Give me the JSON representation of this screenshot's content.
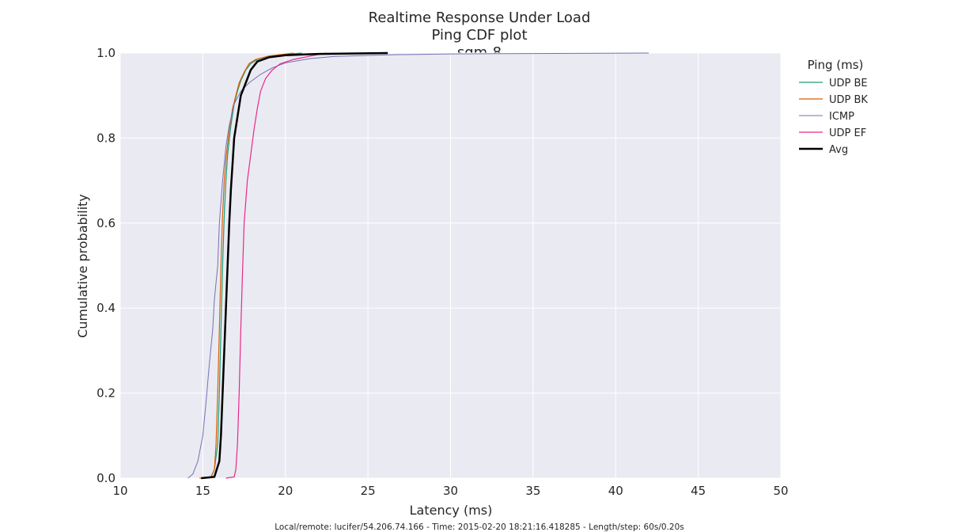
{
  "chart_data": {
    "type": "line",
    "title": [
      "Realtime Response Under Load",
      "Ping CDF plot",
      "sqm-8"
    ],
    "xlabel": "Latency (ms)",
    "ylabel": "Cumulative probability",
    "xlim": [
      10,
      50
    ],
    "ylim": [
      0.0,
      1.0
    ],
    "xticks": [
      10,
      15,
      20,
      25,
      30,
      35,
      40,
      45,
      50
    ],
    "yticks": [
      "0.0",
      "0.2",
      "0.4",
      "0.6",
      "0.8",
      "1.0"
    ],
    "grid": true,
    "legend_title": "Ping (ms)",
    "legend_position": "outside-right",
    "footer": "Local/remote: lucifer/54.206.74.166 - Time: 2015-02-20 18:21:16.418285 - Length/step: 60s/0.20s",
    "series": [
      {
        "name": "UDP BE",
        "color": "#1b9e77",
        "width": 1.2,
        "points": [
          [
            15.0,
            0.0
          ],
          [
            15.5,
            0.003
          ],
          [
            15.7,
            0.02
          ],
          [
            15.9,
            0.08
          ],
          [
            16.0,
            0.2
          ],
          [
            16.1,
            0.35
          ],
          [
            16.2,
            0.5
          ],
          [
            16.3,
            0.62
          ],
          [
            16.4,
            0.7
          ],
          [
            16.5,
            0.76
          ],
          [
            16.7,
            0.83
          ],
          [
            16.9,
            0.88
          ],
          [
            17.1,
            0.91
          ],
          [
            17.3,
            0.935
          ],
          [
            17.6,
            0.96
          ],
          [
            17.9,
            0.975
          ],
          [
            18.3,
            0.985
          ],
          [
            19.0,
            0.993
          ],
          [
            20.0,
            0.997
          ],
          [
            21.0,
            1.0
          ]
        ]
      },
      {
        "name": "UDP BK",
        "color": "#d95f02",
        "width": 1.2,
        "points": [
          [
            14.8,
            0.0
          ],
          [
            15.5,
            0.003
          ],
          [
            15.7,
            0.02
          ],
          [
            15.8,
            0.08
          ],
          [
            15.9,
            0.2
          ],
          [
            16.0,
            0.35
          ],
          [
            16.1,
            0.5
          ],
          [
            16.2,
            0.62
          ],
          [
            16.3,
            0.7
          ],
          [
            16.4,
            0.75
          ],
          [
            16.6,
            0.82
          ],
          [
            16.8,
            0.87
          ],
          [
            17.0,
            0.9
          ],
          [
            17.2,
            0.93
          ],
          [
            17.5,
            0.955
          ],
          [
            17.8,
            0.975
          ],
          [
            18.2,
            0.985
          ],
          [
            19.0,
            0.993
          ],
          [
            20.5,
            1.0
          ]
        ]
      },
      {
        "name": "ICMP",
        "color": "#7570b3",
        "width": 1.0,
        "points": [
          [
            14.1,
            0.0
          ],
          [
            14.4,
            0.01
          ],
          [
            14.7,
            0.04
          ],
          [
            15.0,
            0.1
          ],
          [
            15.2,
            0.18
          ],
          [
            15.4,
            0.27
          ],
          [
            15.6,
            0.35
          ],
          [
            15.7,
            0.42
          ],
          [
            15.9,
            0.5
          ],
          [
            16.0,
            0.6
          ],
          [
            16.2,
            0.7
          ],
          [
            16.4,
            0.78
          ],
          [
            16.6,
            0.83
          ],
          [
            16.9,
            0.88
          ],
          [
            17.3,
            0.91
          ],
          [
            17.8,
            0.93
          ],
          [
            18.5,
            0.95
          ],
          [
            19.2,
            0.965
          ],
          [
            20.0,
            0.977
          ],
          [
            21.5,
            0.987
          ],
          [
            23.0,
            0.992
          ],
          [
            26.5,
            0.996
          ],
          [
            30.0,
            0.998
          ],
          [
            42.0,
            1.0
          ]
        ]
      },
      {
        "name": "UDP EF",
        "color": "#e7298a",
        "width": 1.2,
        "points": [
          [
            16.4,
            0.0
          ],
          [
            16.9,
            0.003
          ],
          [
            17.0,
            0.02
          ],
          [
            17.1,
            0.08
          ],
          [
            17.2,
            0.2
          ],
          [
            17.3,
            0.35
          ],
          [
            17.4,
            0.48
          ],
          [
            17.5,
            0.6
          ],
          [
            17.7,
            0.7
          ],
          [
            17.9,
            0.76
          ],
          [
            18.1,
            0.82
          ],
          [
            18.3,
            0.87
          ],
          [
            18.5,
            0.91
          ],
          [
            18.8,
            0.94
          ],
          [
            19.2,
            0.96
          ],
          [
            19.7,
            0.975
          ],
          [
            20.5,
            0.985
          ],
          [
            21.5,
            0.993
          ],
          [
            22.5,
            1.0
          ]
        ]
      },
      {
        "name": "Avg",
        "color": "#000000",
        "width": 2.5,
        "points": [
          [
            14.9,
            0.0
          ],
          [
            15.7,
            0.003
          ],
          [
            16.0,
            0.04
          ],
          [
            16.1,
            0.1
          ],
          [
            16.2,
            0.2
          ],
          [
            16.3,
            0.3
          ],
          [
            16.4,
            0.4
          ],
          [
            16.5,
            0.5
          ],
          [
            16.6,
            0.6
          ],
          [
            16.7,
            0.68
          ],
          [
            16.8,
            0.74
          ],
          [
            16.9,
            0.8
          ],
          [
            17.1,
            0.85
          ],
          [
            17.3,
            0.9
          ],
          [
            17.6,
            0.93
          ],
          [
            17.9,
            0.96
          ],
          [
            18.3,
            0.98
          ],
          [
            19.0,
            0.99
          ],
          [
            20.0,
            0.995
          ],
          [
            22.0,
            0.998
          ],
          [
            26.2,
            1.0
          ]
        ]
      }
    ]
  }
}
